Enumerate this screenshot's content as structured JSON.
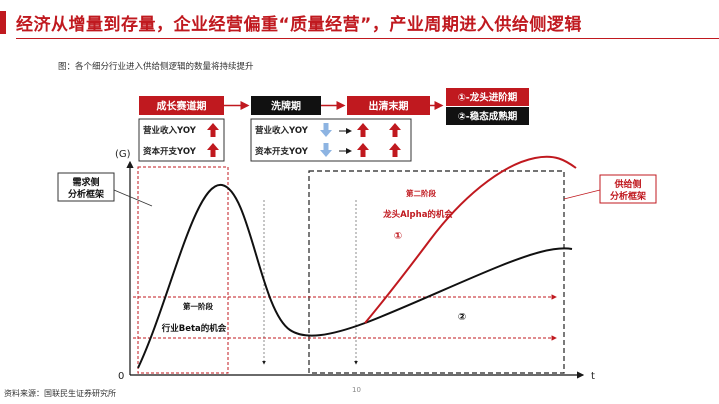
{
  "header": {
    "title": "经济从增量到存量，企业经营偏重“质量经营”，产业周期进入供给侧逻辑",
    "accent_color": "#c0191f"
  },
  "figure": {
    "caption": "图：各个细分行业进入供给侧逻辑的数量将持续提升",
    "phases": [
      "成长赛道期",
      "洗牌期",
      "出清末期"
    ],
    "outcomes": [
      "①-龙头进阶期",
      "②-稳态成熟期"
    ],
    "metrics": [
      "营业收入YOY",
      "资本开支YOY"
    ],
    "arrows": {
      "growth": [
        "up-red",
        "up-red"
      ],
      "shakeout": [
        "down-blue",
        "down-blue"
      ],
      "clearance": [
        [
          "right-black",
          "up-red",
          "up-red"
        ],
        [
          "right-black",
          "up-red",
          "up-red"
        ]
      ]
    },
    "y_axis_label": "(G)",
    "x_axis_label": "t",
    "origin_label": "0",
    "demand_box": "需求侧\n分析框架",
    "supply_box": "供给侧\n分析框架",
    "stage_one": "第一阶段",
    "stage_one_opportunity": "行业Beta的机会",
    "stage_two": "第二阶段",
    "stage_two_opportunity": "龙头Alpha的机会",
    "marker_1": "①",
    "marker_2": "②",
    "colors": {
      "red": "#c0191f",
      "blue": "#8db4e2",
      "dark": "#1a1a1a"
    }
  },
  "footer": {
    "source": "资料来源：国联民生证券研究所",
    "page_number": "10"
  }
}
